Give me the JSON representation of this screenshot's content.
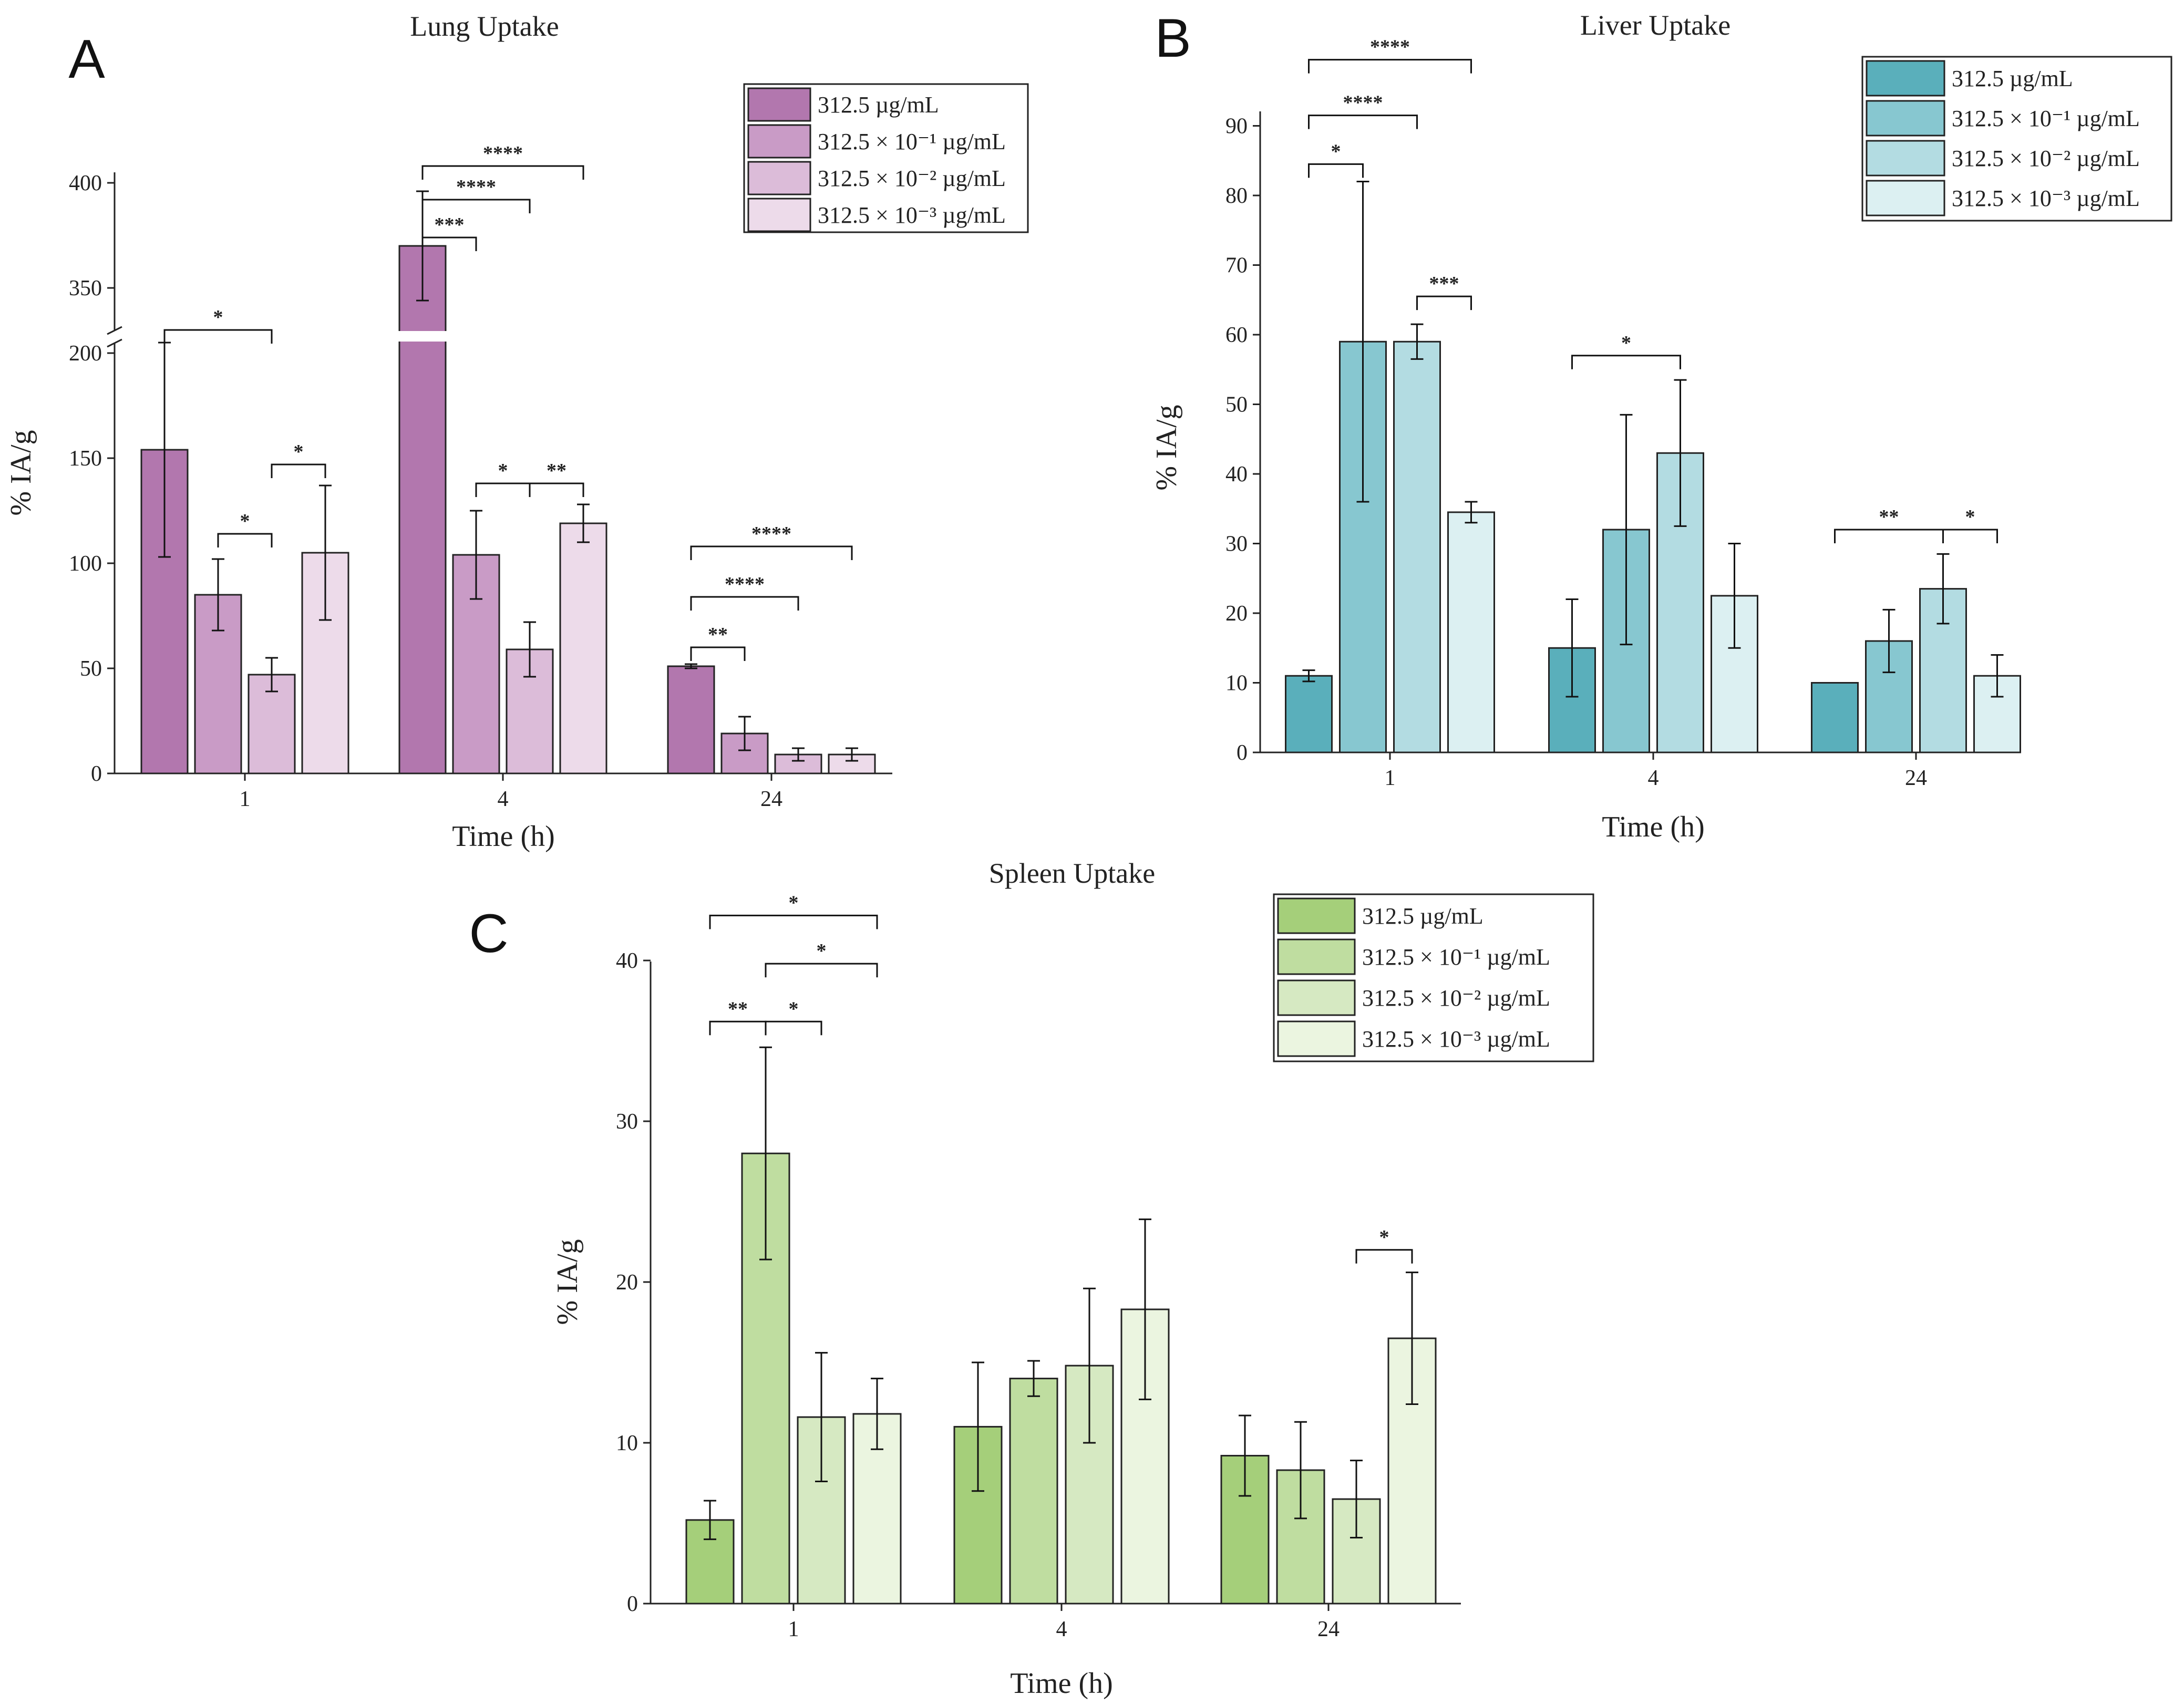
{
  "chart_data": [
    {
      "panel": "A",
      "type": "bar",
      "title": "Lung Uptake",
      "xlabel": "Time (h)",
      "ylabel": "% IA/g",
      "categories": [
        "1",
        "4",
        "24"
      ],
      "y_ticks_lower": [
        "0",
        "50",
        "100",
        "150",
        "200"
      ],
      "y_ticks_upper": [
        "350",
        "400"
      ],
      "axis_break": [
        205,
        330
      ],
      "ylim": [
        0,
        405
      ],
      "legend": [
        "312.5 µg/mL",
        "312.5 × 10⁻¹ µg/mL",
        "312.5 × 10⁻² µg/mL",
        "312.5 × 10⁻³ µg/mL"
      ],
      "colors": [
        "#b277ae",
        "#c99bc6",
        "#dcbcd9",
        "#eddbea"
      ],
      "series": [
        {
          "name": "312.5 µg/mL",
          "values": [
            154,
            370,
            51
          ],
          "errors": [
            51,
            26,
            1
          ]
        },
        {
          "name": "312.5 × 10⁻¹ µg/mL",
          "values": [
            85,
            104,
            19
          ],
          "errors": [
            17,
            21,
            8
          ]
        },
        {
          "name": "312.5 × 10⁻² µg/mL",
          "values": [
            47,
            59,
            9
          ],
          "errors": [
            8,
            13,
            3
          ]
        },
        {
          "name": "312.5 × 10⁻³ µg/mL",
          "values": [
            105,
            119,
            9
          ],
          "errors": [
            32,
            9,
            3
          ]
        }
      ],
      "significance": [
        {
          "cat": 0,
          "a": 0,
          "b": 2,
          "label": "*",
          "y": 210
        },
        {
          "cat": 0,
          "a": 1,
          "b": 2,
          "label": "*",
          "y": 114
        },
        {
          "cat": 0,
          "a": 2,
          "b": 3,
          "label": "*",
          "y": 147
        },
        {
          "cat": 1,
          "a": 0,
          "b": 1,
          "label": "***",
          "y": 374
        },
        {
          "cat": 1,
          "a": 0,
          "b": 2,
          "label": "****",
          "y": 392
        },
        {
          "cat": 1,
          "a": 0,
          "b": 3,
          "label": "****",
          "y": 408
        },
        {
          "cat": 1,
          "a": 1,
          "b": 2,
          "label": "*",
          "y": 138
        },
        {
          "cat": 1,
          "a": 2,
          "b": 3,
          "label": "**",
          "y": 138
        },
        {
          "cat": 2,
          "a": 0,
          "b": 1,
          "label": "**",
          "y": 60
        },
        {
          "cat": 2,
          "a": 0,
          "b": 2,
          "label": "****",
          "y": 84
        },
        {
          "cat": 2,
          "a": 0,
          "b": 3,
          "label": "****",
          "y": 108
        }
      ]
    },
    {
      "panel": "B",
      "type": "bar",
      "title": "Liver Uptake",
      "xlabel": "Time (h)",
      "ylabel": "% IA/g",
      "categories": [
        "1",
        "4",
        "24"
      ],
      "y_ticks": [
        "0",
        "10",
        "20",
        "30",
        "40",
        "50",
        "60",
        "70",
        "80",
        "90"
      ],
      "ylim": [
        0,
        92
      ],
      "legend": [
        "312.5 µg/mL",
        "312.5 × 10⁻¹ µg/mL",
        "312.5 × 10⁻² µg/mL",
        "312.5 × 10⁻³ µg/mL"
      ],
      "colors": [
        "#5aafbb",
        "#87c7d0",
        "#b3dce2",
        "#dcf0f2"
      ],
      "series": [
        {
          "name": "312.5 µg/mL",
          "values": [
            11,
            15,
            10
          ],
          "errors": [
            0.8,
            7,
            0
          ]
        },
        {
          "name": "312.5 × 10⁻¹ µg/mL",
          "values": [
            59,
            32,
            16
          ],
          "errors": [
            23,
            16.5,
            4.5
          ]
        },
        {
          "name": "312.5 × 10⁻² µg/mL",
          "values": [
            59,
            43,
            23.5
          ],
          "errors": [
            2.5,
            10.5,
            5
          ]
        },
        {
          "name": "312.5 × 10⁻³ µg/mL",
          "values": [
            34.5,
            22.5,
            11
          ],
          "errors": [
            1.5,
            7.5,
            3
          ]
        }
      ],
      "significance": [
        {
          "cat": 0,
          "a": 0,
          "b": 1,
          "label": "*",
          "y": 84.5
        },
        {
          "cat": 0,
          "a": 0,
          "b": 2,
          "label": "****",
          "y": 91.5
        },
        {
          "cat": 0,
          "a": 0,
          "b": 3,
          "label": "****",
          "y": 99.5
        },
        {
          "cat": 0,
          "a": 2,
          "b": 3,
          "label": "***",
          "y": 65.5
        },
        {
          "cat": 1,
          "a": 0,
          "b": 2,
          "label": "*",
          "y": 57
        },
        {
          "cat": 2,
          "a": 0,
          "b": 2,
          "label": "**",
          "y": 32
        },
        {
          "cat": 2,
          "a": 2,
          "b": 3,
          "label": "*",
          "y": 32
        }
      ]
    },
    {
      "panel": "C",
      "type": "bar",
      "title": "Spleen Uptake",
      "xlabel": "Time (h)",
      "ylabel": "% IA/g",
      "categories": [
        "1",
        "4",
        "24"
      ],
      "y_ticks": [
        "0",
        "10",
        "20",
        "30",
        "40"
      ],
      "ylim": [
        0,
        40
      ],
      "legend": [
        "312.5 µg/mL",
        "312.5 × 10⁻¹ µg/mL",
        "312.5 × 10⁻² µg/mL",
        "312.5 × 10⁻³ µg/mL"
      ],
      "colors": [
        "#a5cf7a",
        "#bfdda0",
        "#d6e9c2",
        "#ebf5e0"
      ],
      "series": [
        {
          "name": "312.5 µg/mL",
          "values": [
            5.2,
            11,
            9.2
          ],
          "errors": [
            1.2,
            4,
            2.5
          ]
        },
        {
          "name": "312.5 × 10⁻¹ µg/mL",
          "values": [
            28,
            14,
            8.3
          ],
          "errors": [
            6.6,
            1.1,
            3
          ]
        },
        {
          "name": "312.5 × 10⁻² µg/mL",
          "values": [
            11.6,
            14.8,
            6.5
          ],
          "errors": [
            4,
            4.8,
            2.4
          ]
        },
        {
          "name": "312.5 × 10⁻³ µg/mL",
          "values": [
            11.8,
            18.3,
            16.5
          ],
          "errors": [
            2.2,
            5.6,
            4.1
          ]
        }
      ],
      "significance": [
        {
          "cat": 0,
          "a": 0,
          "b": 1,
          "label": "**",
          "y": 36.2
        },
        {
          "cat": 0,
          "a": 1,
          "b": 2,
          "label": "*",
          "y": 36.2
        },
        {
          "cat": 0,
          "a": 1,
          "b": 3,
          "label": "*",
          "y": 39.8
        },
        {
          "cat": 0,
          "a": 0,
          "b": 3,
          "label": "*",
          "y": 42.8
        },
        {
          "cat": 2,
          "a": 2,
          "b": 3,
          "label": "*",
          "y": 22
        }
      ]
    }
  ]
}
